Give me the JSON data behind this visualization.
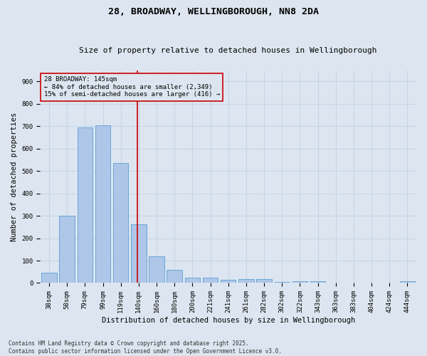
{
  "title": "28, BROADWAY, WELLINGBOROUGH, NN8 2DA",
  "subtitle": "Size of property relative to detached houses in Wellingborough",
  "xlabel": "Distribution of detached houses by size in Wellingborough",
  "ylabel": "Number of detached properties",
  "categories": [
    "38sqm",
    "58sqm",
    "79sqm",
    "99sqm",
    "119sqm",
    "140sqm",
    "160sqm",
    "180sqm",
    "200sqm",
    "221sqm",
    "241sqm",
    "261sqm",
    "282sqm",
    "302sqm",
    "322sqm",
    "343sqm",
    "363sqm",
    "383sqm",
    "404sqm",
    "424sqm",
    "444sqm"
  ],
  "values": [
    45,
    300,
    695,
    705,
    535,
    263,
    120,
    60,
    25,
    25,
    15,
    18,
    18,
    5,
    8,
    8,
    3,
    2,
    1,
    1,
    7
  ],
  "bar_color": "#aec6e8",
  "bar_edge_color": "#5a9fd4",
  "grid_color": "#c8d4e8",
  "background_color": "#dde6f0",
  "vline_color": "#cc0000",
  "vline_x_index": 5,
  "annotation_text": "28 BROADWAY: 145sqm\n← 84% of detached houses are smaller (2,349)\n15% of semi-detached houses are larger (416) →",
  "annotation_box_color": "#cc0000",
  "ylim": [
    0,
    950
  ],
  "yticks": [
    0,
    100,
    200,
    300,
    400,
    500,
    600,
    700,
    800,
    900
  ],
  "footnote": "Contains HM Land Registry data © Crown copyright and database right 2025.\nContains public sector information licensed under the Open Government Licence v3.0.",
  "title_fontsize": 9.5,
  "subtitle_fontsize": 8,
  "xlabel_fontsize": 7.5,
  "ylabel_fontsize": 7.5,
  "tick_fontsize": 6.5,
  "annotation_fontsize": 6.5,
  "footnote_fontsize": 5.5
}
